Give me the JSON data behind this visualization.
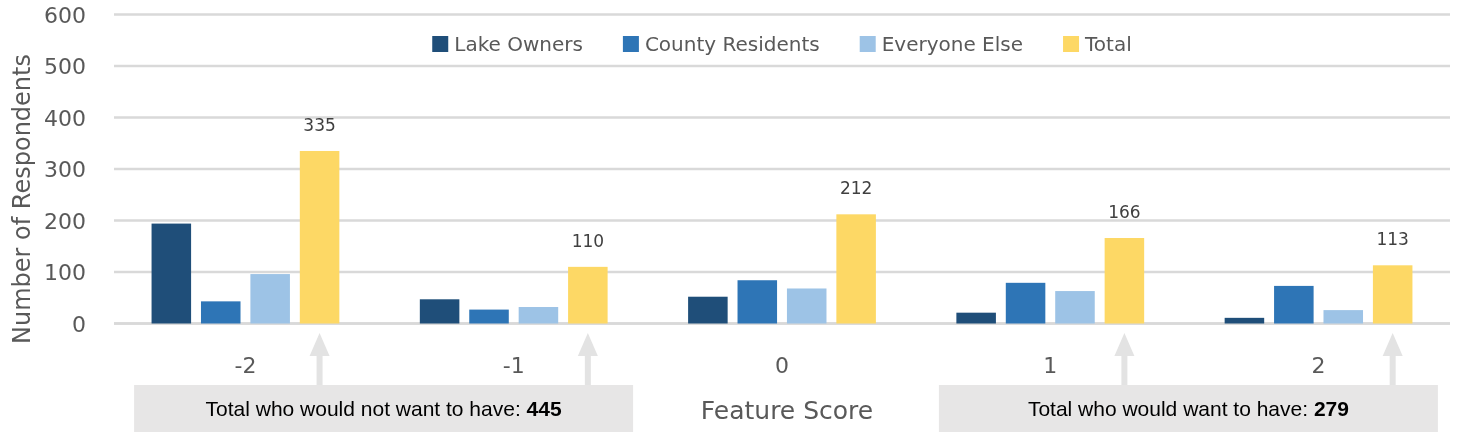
{
  "chart_data": {
    "type": "bar",
    "xlabel": "Feature Score",
    "ylabel": "Number of Respondents",
    "categories": [
      "-2",
      "-1",
      "0",
      "1",
      "2"
    ],
    "series": [
      {
        "name": "Lake Owners",
        "color": "#1f4e79",
        "values": [
          194,
          47,
          52,
          21,
          11
        ]
      },
      {
        "name": "County Residents",
        "color": "#2e75b6",
        "values": [
          43,
          27,
          84,
          79,
          73
        ]
      },
      {
        "name": "Everyone Else",
        "color": "#9dc3e6",
        "values": [
          96,
          32,
          68,
          63,
          26
        ]
      },
      {
        "name": "Total",
        "color": "#fdd865",
        "values": [
          335,
          110,
          212,
          166,
          113
        ],
        "value_labels": [
          "335",
          "110",
          "212",
          "166",
          "113"
        ]
      }
    ],
    "ylim": [
      0,
      600
    ],
    "yticks": [
      0,
      100,
      200,
      300,
      400,
      500,
      600
    ],
    "grid": "y",
    "legend": "top",
    "annotations": [
      "Total who would not want to have: 445",
      "Total who would want to have: 279"
    ]
  }
}
